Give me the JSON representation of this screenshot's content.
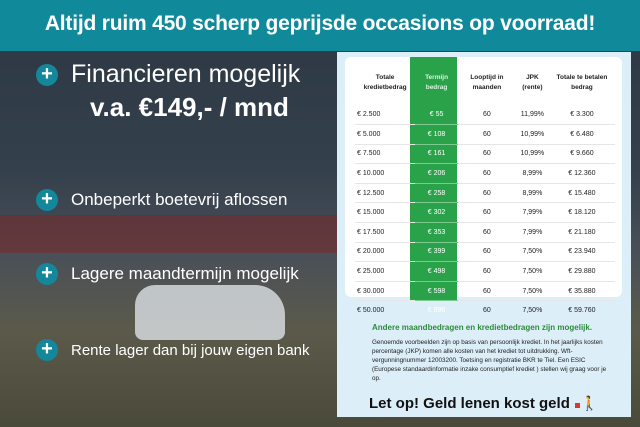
{
  "header": {
    "title": "Altijd ruim 450 scherp geprijsde occasions op voorraad!"
  },
  "features": [
    {
      "label": "Financieren mogelijk",
      "sub": "v.a. €149,- / mnd"
    },
    {
      "label": "Onbeperkt boetevrij aflossen"
    },
    {
      "label": "Lagere maandtermijn mogelijk"
    },
    {
      "label": "Rente lager dan bij jouw eigen bank"
    }
  ],
  "table": {
    "headers": [
      "Totale kredietbedrag",
      "Termijn bedrag",
      "Looptijd in maanden",
      "JPK (rente)",
      "Totale te betalen bedrag"
    ],
    "rows": [
      [
        "€ 2.500",
        "€ 55",
        "60",
        "11,99%",
        "€ 3.300"
      ],
      [
        "€ 5.000",
        "€ 108",
        "60",
        "10,99%",
        "€ 6.480"
      ],
      [
        "€ 7.500",
        "€ 161",
        "60",
        "10,99%",
        "€ 9.660"
      ],
      [
        "€ 10.000",
        "€ 206",
        "60",
        "8,99%",
        "€ 12.360"
      ],
      [
        "€ 12.500",
        "€ 258",
        "60",
        "8,99%",
        "€ 15.480"
      ],
      [
        "€ 15.000",
        "€ 302",
        "60",
        "7,99%",
        "€ 18.120"
      ],
      [
        "€ 17.500",
        "€ 353",
        "60",
        "7,99%",
        "€ 21.180"
      ],
      [
        "€ 20.000",
        "€ 399",
        "60",
        "7,50%",
        "€ 23.940"
      ],
      [
        "€ 25.000",
        "€ 498",
        "60",
        "7,50%",
        "€ 29.880"
      ],
      [
        "€ 30.000",
        "€ 598",
        "60",
        "7,50%",
        "€ 35.880"
      ],
      [
        "€ 50.000",
        "€ 996",
        "60",
        "7,50%",
        "€ 59.760"
      ]
    ]
  },
  "note": {
    "heading": "Andere maandbedragen en kredietbedragen zijn mogelijk.",
    "body": "Genoemde voorbeelden zijn op basis van persoonlijk krediet. In het jaarlijks kosten percentage (JKP) komen alle kosten van het krediet tot uitdrukking. Wft-vergunningnummer 12003200. Toetsing en registratie BKR te Tiel. Een ESIC (Europese standaardinformatie inzake consumptief krediet ) stellen wij graag voor je op."
  },
  "warning": "Let op! Geld lenen kost geld",
  "colors": {
    "header": "#108a9b",
    "accent_green": "#2aa24a",
    "panel": "#dceef8"
  }
}
